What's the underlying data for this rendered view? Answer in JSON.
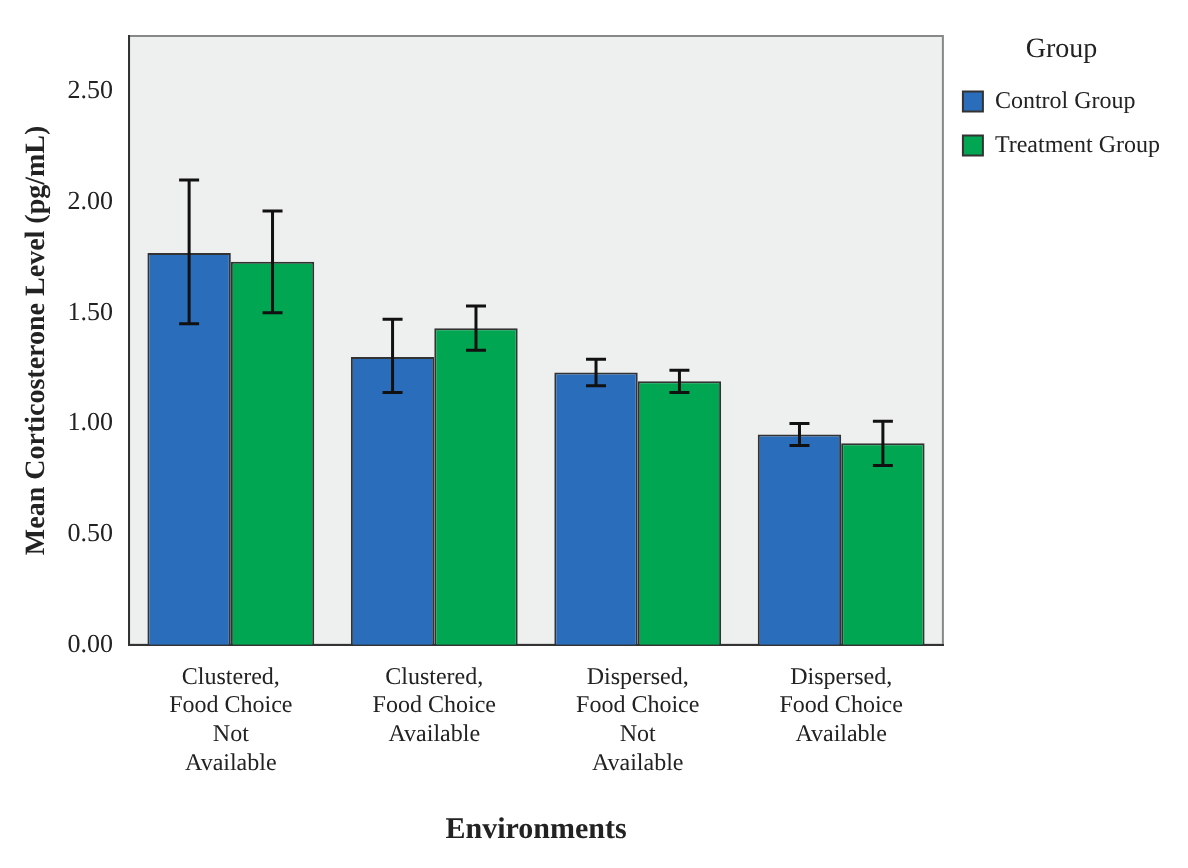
{
  "chart_data": {
    "type": "bar",
    "xlabel": "Environments",
    "ylabel": "Mean Corticosterone Level (pg/mL)",
    "legend_title": "Group",
    "categories": [
      "Clustered, Food Choice Not Available",
      "Clustered, Food Choice Available",
      "Dispersed, Food Choice Not Available",
      "Dispersed, Food Choice Available"
    ],
    "series": [
      {
        "name": "Control Group",
        "color": "#2a6ebb",
        "values": [
          1.77,
          1.3,
          1.23,
          0.95
        ],
        "errors": [
          [
            1.45,
            2.1
          ],
          [
            1.14,
            1.47
          ],
          [
            1.17,
            1.29
          ],
          [
            0.9,
            1.0
          ]
        ]
      },
      {
        "name": "Treatment Group",
        "color": "#00a651",
        "values": [
          1.73,
          1.43,
          1.19,
          0.91
        ],
        "errors": [
          [
            1.5,
            1.96
          ],
          [
            1.33,
            1.53
          ],
          [
            1.14,
            1.24
          ],
          [
            0.81,
            1.01
          ]
        ]
      }
    ],
    "ylim": [
      0,
      2.75
    ],
    "yticks": [
      {
        "value": 0,
        "label": "0.00"
      },
      {
        "value": 0.5,
        "label": "0.50"
      },
      {
        "value": 1,
        "label": "1.00"
      },
      {
        "value": 1.5,
        "label": "1.50"
      },
      {
        "value": 2,
        "label": "2.00"
      },
      {
        "value": 2.5,
        "label": "2.50"
      }
    ],
    "grid": false,
    "legend": "top right"
  }
}
